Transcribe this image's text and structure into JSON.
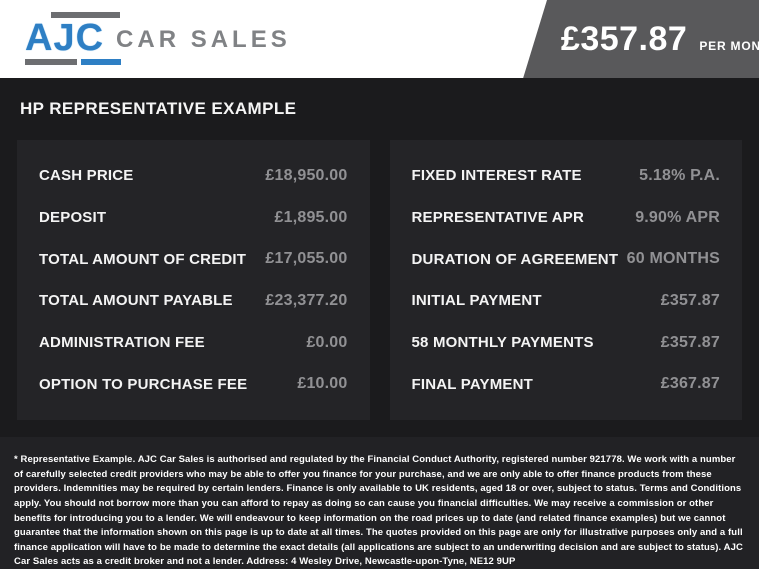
{
  "header": {
    "logo": {
      "ajc": "AJC",
      "car_sales": "CAR SALES"
    },
    "price_banner": {
      "amount": "£357.87",
      "period": "PER MONTH*"
    }
  },
  "section_title": "HP REPRESENTATIVE EXAMPLE",
  "finance": {
    "left_rows": [
      {
        "label": "CASH PRICE",
        "value": "£18,950.00"
      },
      {
        "label": "DEPOSIT",
        "value": "£1,895.00"
      },
      {
        "label": "TOTAL AMOUNT OF CREDIT",
        "value": "£17,055.00"
      },
      {
        "label": "TOTAL AMOUNT PAYABLE",
        "value": "£23,377.20"
      },
      {
        "label": "ADMINISTRATION FEE",
        "value": "£0.00"
      },
      {
        "label": "OPTION TO PURCHASE FEE",
        "value": "£10.00"
      }
    ],
    "right_rows": [
      {
        "label": "FIXED INTEREST RATE",
        "value": "5.18% P.A."
      },
      {
        "label": "REPRESENTATIVE APR",
        "value": "9.90% APR"
      },
      {
        "label": "DURATION OF AGREEMENT",
        "value": "60 MONTHS"
      },
      {
        "label": "INITIAL PAYMENT",
        "value": "£357.87"
      },
      {
        "label": "58 MONTHLY PAYMENTS",
        "value": "£357.87"
      },
      {
        "label": "FINAL PAYMENT",
        "value": "£367.87"
      }
    ]
  },
  "footer": {
    "disclaimer": "* Representative Example. AJC Car Sales is authorised and regulated by the Financial Conduct Authority, registered number 921778. We work with a number of carefully selected credit providers who may be able to offer you finance for your purchase, and we are only able to offer finance products from these providers. Indemnities may be required by certain lenders. Finance is only available to UK residents, aged 18 or over, subject to status. Terms and Conditions apply. You should not borrow more than you can afford to repay as doing so can cause you financial difficulties. We may receive a commission or other benefits for introducing you to a lender. We will endeavour to keep information on the road prices up to date (and related finance examples) but we cannot guarantee that the information shown on this page is up to date at all times. The quotes provided on this page are only for illustrative purposes only and a full finance application will have to be made to determine the exact details (all applications are subject to an underwriting decision and are subject to status). AJC Car Sales acts as a credit broker and not a lender. Address: 4 Wesley Drive, Newcastle-upon-Tyne, NE12 9UP"
  },
  "colors": {
    "accent_blue": "#2e7fc4",
    "banner_gray": "#59595b",
    "background_dark": "#1b1b1d",
    "panel_dark": "#242427",
    "value_gray": "#919194"
  }
}
